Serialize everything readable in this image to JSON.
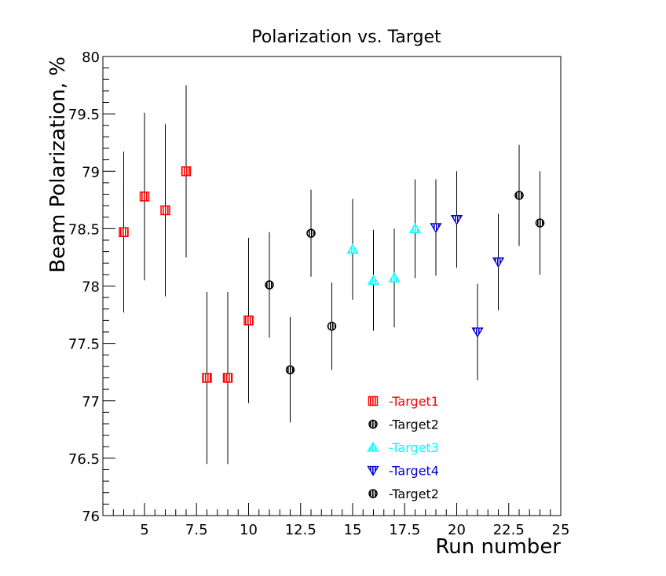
{
  "chart_data": {
    "type": "scatter",
    "title": "Polarization vs. Target",
    "xlabel": "Run number",
    "ylabel": "Beam Polarization, %",
    "xlim": [
      3,
      25
    ],
    "ylim": [
      76,
      80
    ],
    "xticks": [
      "5",
      "7.5",
      "10",
      "12.5",
      "15",
      "17.5",
      "20",
      "22.5",
      "25"
    ],
    "yticks": [
      "76",
      "76.5",
      "77",
      "77.5",
      "78",
      "78.5",
      "79",
      "79.5",
      "80"
    ],
    "grid": false,
    "legend_position": "bottom-center",
    "series": [
      {
        "name": "-Target1",
        "color": "#ff0000",
        "marker": "square-hatched",
        "points": [
          {
            "x": 4,
            "y": 78.47,
            "err": 0.7
          },
          {
            "x": 5,
            "y": 78.78,
            "err": 0.73
          },
          {
            "x": 6,
            "y": 78.66,
            "err": 0.75
          },
          {
            "x": 7,
            "y": 79.0,
            "err": 0.75
          },
          {
            "x": 8,
            "y": 77.2,
            "err": 0.75
          },
          {
            "x": 9,
            "y": 77.2,
            "err": 0.75
          },
          {
            "x": 10,
            "y": 77.7,
            "err": 0.72
          }
        ]
      },
      {
        "name": "-Target2",
        "color": "#000000",
        "marker": "circle-hatched",
        "points": [
          {
            "x": 11,
            "y": 78.01,
            "err": 0.46
          },
          {
            "x": 12,
            "y": 77.27,
            "err": 0.46
          },
          {
            "x": 13,
            "y": 78.46,
            "err": 0.38
          },
          {
            "x": 14,
            "y": 77.65,
            "err": 0.38
          }
        ]
      },
      {
        "name": "-Target3",
        "color": "#00ffff",
        "marker": "triangle-up",
        "points": [
          {
            "x": 15,
            "y": 78.32,
            "err": 0.44
          },
          {
            "x": 16,
            "y": 78.05,
            "err": 0.44
          },
          {
            "x": 17,
            "y": 78.07,
            "err": 0.43
          },
          {
            "x": 18,
            "y": 78.5,
            "err": 0.43
          }
        ]
      },
      {
        "name": "-Target4",
        "color": "#0000cc",
        "marker": "triangle-down",
        "points": [
          {
            "x": 19,
            "y": 78.51,
            "err": 0.42
          },
          {
            "x": 20,
            "y": 78.58,
            "err": 0.42
          },
          {
            "x": 21,
            "y": 77.6,
            "err": 0.42
          },
          {
            "x": 22,
            "y": 78.21,
            "err": 0.42
          }
        ]
      },
      {
        "name": "-Target2",
        "color": "#000000",
        "marker": "circle-hatched",
        "points": [
          {
            "x": 23,
            "y": 78.79,
            "err": 0.44
          },
          {
            "x": 24,
            "y": 78.55,
            "err": 0.45
          }
        ]
      }
    ]
  }
}
